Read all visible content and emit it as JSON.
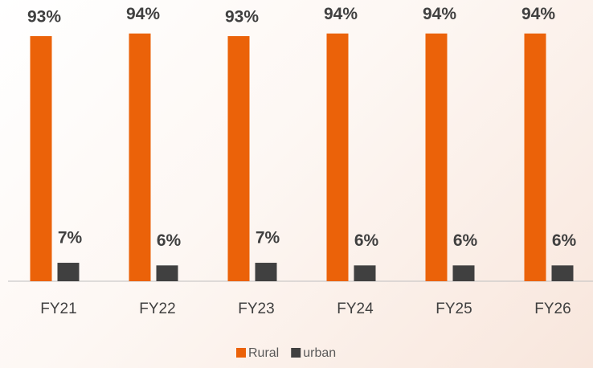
{
  "chart_data": {
    "type": "bar",
    "categories": [
      "FY21",
      "FY22",
      "FY23",
      "FY24",
      "FY25",
      "FY26"
    ],
    "series": [
      {
        "name": "Rural",
        "color": "#eb6209",
        "values": [
          93,
          94,
          93,
          94,
          94,
          94
        ],
        "value_labels": [
          "93%",
          "94%",
          "93%",
          "94%",
          "94%",
          "94%"
        ]
      },
      {
        "name": "urban",
        "color": "#404040",
        "values": [
          7,
          6,
          7,
          6,
          6,
          6
        ],
        "value_labels": [
          "7%",
          "6%",
          "7%",
          "6%",
          "6%",
          "6%"
        ]
      }
    ],
    "ylim": [
      0,
      100
    ],
    "legend": "bottom"
  }
}
